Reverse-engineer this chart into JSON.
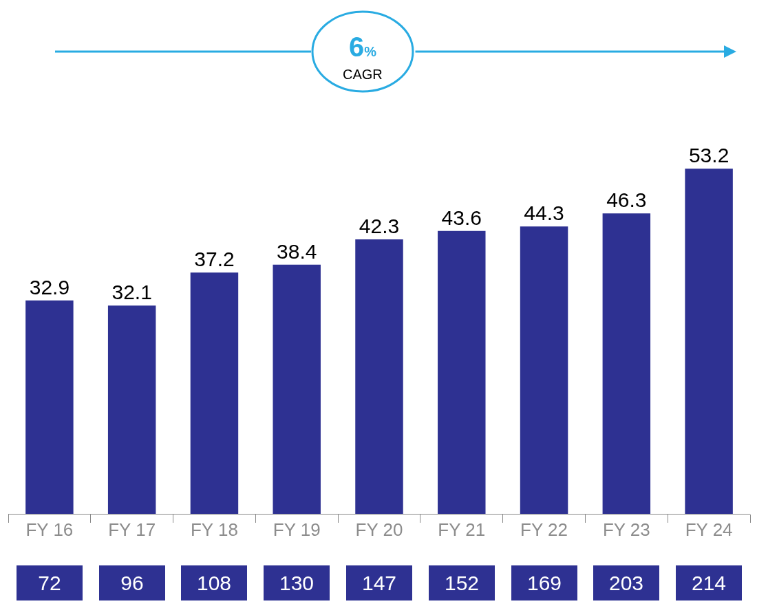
{
  "chart_data": {
    "type": "bar",
    "categories": [
      "FY 16",
      "FY 17",
      "FY 18",
      "FY 19",
      "FY 20",
      "FY 21",
      "FY 22",
      "FY 23",
      "FY 24"
    ],
    "values": [
      32.9,
      32.1,
      37.2,
      38.4,
      42.3,
      43.6,
      44.3,
      46.3,
      53.2
    ],
    "color": "#2e3192",
    "data_labels": true,
    "legend": false,
    "tick_labels": "x",
    "annotations": [
      "6%",
      "CAGR",
      "72",
      "96",
      "108",
      "130",
      "147",
      "152",
      "169",
      "203",
      "214"
    ]
  }
}
